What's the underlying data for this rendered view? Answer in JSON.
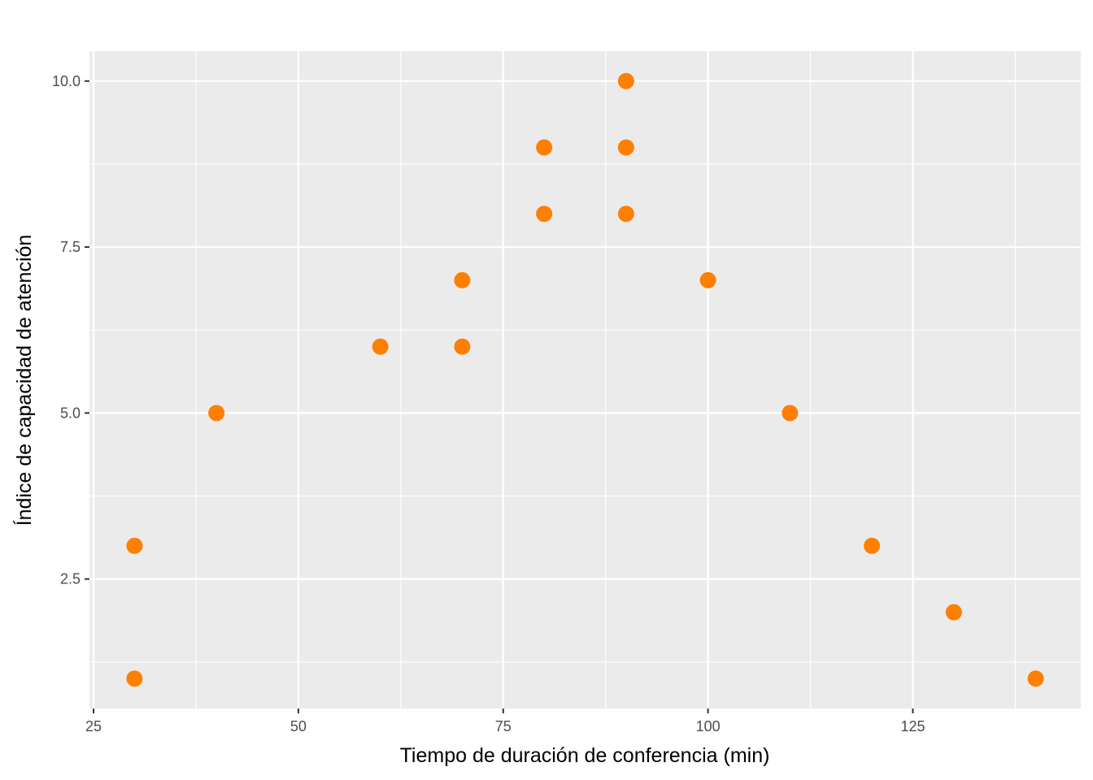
{
  "chart_data": {
    "type": "scatter",
    "title": "",
    "xlabel": "Tiempo de duración de conferencia (min)",
    "ylabel": "Índice de capacidad de atención",
    "xlim": [
      24.5,
      145.5
    ],
    "ylim": [
      0.55,
      10.45
    ],
    "x_ticks": [
      25,
      50,
      75,
      100,
      125
    ],
    "x_tick_labels": [
      "25",
      "50",
      "75",
      "100",
      "125"
    ],
    "y_ticks": [
      2.5,
      5.0,
      7.5,
      10.0
    ],
    "y_tick_labels": [
      "2.5",
      "5.0",
      "7.5",
      "10.0"
    ],
    "grid": true,
    "colors": {
      "panel": "#ebebeb",
      "grid": "#ffffff",
      "point": "#ff7f00",
      "tick": "#333333"
    },
    "points": [
      {
        "x": 30,
        "y": 3
      },
      {
        "x": 30,
        "y": 1
      },
      {
        "x": 40,
        "y": 5
      },
      {
        "x": 60,
        "y": 6
      },
      {
        "x": 70,
        "y": 7
      },
      {
        "x": 70,
        "y": 6
      },
      {
        "x": 80,
        "y": 9
      },
      {
        "x": 80,
        "y": 8
      },
      {
        "x": 90,
        "y": 10
      },
      {
        "x": 90,
        "y": 9
      },
      {
        "x": 90,
        "y": 8
      },
      {
        "x": 100,
        "y": 7
      },
      {
        "x": 110,
        "y": 5
      },
      {
        "x": 120,
        "y": 3
      },
      {
        "x": 130,
        "y": 2
      },
      {
        "x": 140,
        "y": 1
      }
    ]
  }
}
